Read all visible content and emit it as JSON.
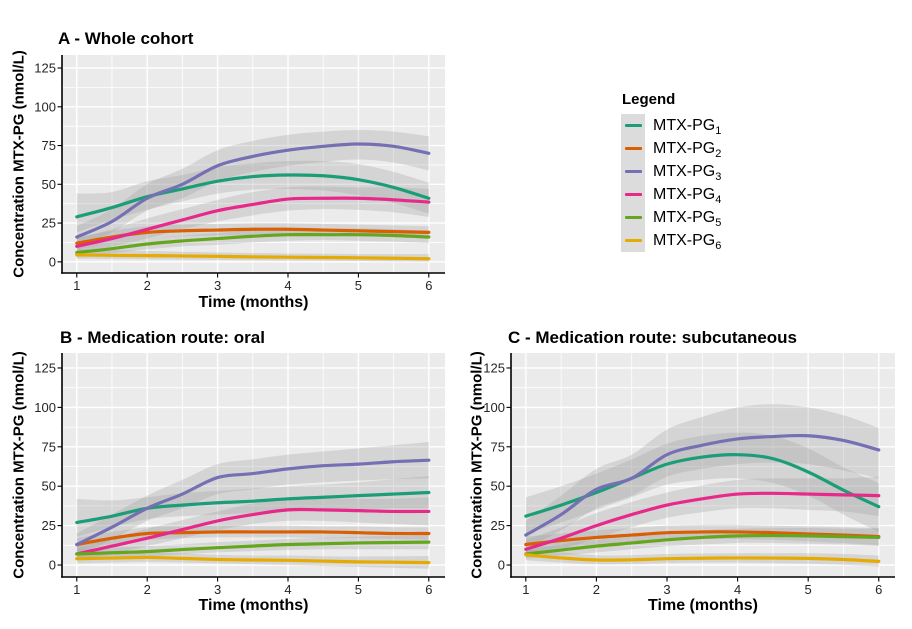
{
  "page": {
    "background": "#FFFFFF"
  },
  "legend": {
    "title": "Legend",
    "key_background": "#DCDCDC",
    "items": [
      {
        "label_base": "MTX-PG",
        "label_sub": "1",
        "color": "#1B9E77"
      },
      {
        "label_base": "MTX-PG",
        "label_sub": "2",
        "color": "#D95F02"
      },
      {
        "label_base": "MTX-PG",
        "label_sub": "3",
        "color": "#7570B3"
      },
      {
        "label_base": "MTX-PG",
        "label_sub": "4",
        "color": "#E7298A"
      },
      {
        "label_base": "MTX-PG",
        "label_sub": "5",
        "color": "#66A61E"
      },
      {
        "label_base": "MTX-PG",
        "label_sub": "6",
        "color": "#E6AB02"
      }
    ]
  },
  "chart_data": [
    {
      "type": "line",
      "title": "A - Whole cohort",
      "xlabel": "Time (months)",
      "ylabel": "Concentration MTX-PG (nmol/L)",
      "xticks": [
        1,
        2,
        3,
        4,
        5,
        6
      ],
      "yticks": [
        0,
        25,
        50,
        75,
        100,
        125
      ],
      "x_minor": [
        1.5,
        2.5,
        3.5,
        4.5,
        5.5
      ],
      "y_minor": [
        12.5,
        37.5,
        62.5,
        87.5,
        112.5
      ],
      "xlim": [
        0.79,
        6.23
      ],
      "ylim": [
        -7.2,
        133.4
      ],
      "grid": true,
      "plot_background": "#EBEBEB",
      "grid_color": "#FFFFFF",
      "band_color": "#999999",
      "band_opacity": 0.28,
      "x": [
        1,
        1.5,
        2,
        2.5,
        3,
        3.5,
        4,
        4.5,
        5,
        5.5,
        6
      ],
      "series": [
        {
          "name": "MTX-PG1",
          "color": "#1B9E77",
          "values": [
            29,
            35,
            42,
            47,
            52,
            55,
            56,
            55.5,
            53,
            48,
            41
          ],
          "ci_low": [
            19,
            27,
            33.5,
            39,
            44,
            46.5,
            47,
            46,
            43,
            38,
            31
          ],
          "ci_high": [
            44,
            45,
            52,
            56,
            61,
            63.5,
            65,
            65,
            63,
            58,
            51
          ]
        },
        {
          "name": "MTX-PG2",
          "color": "#D95F02",
          "values": [
            12,
            16,
            19,
            20,
            20.5,
            21,
            21,
            20.5,
            20,
            19.5,
            19
          ],
          "ci_low": [
            8,
            12,
            15,
            16.5,
            17,
            17.5,
            17.5,
            17,
            16.5,
            16,
            15
          ],
          "ci_high": [
            16,
            20,
            23,
            24,
            24.5,
            25,
            25,
            24.5,
            24,
            23.5,
            23
          ]
        },
        {
          "name": "MTX-PG3",
          "color": "#7570B3",
          "values": [
            16,
            26,
            41,
            50,
            62,
            68,
            72,
            74.5,
            76,
            74.5,
            70
          ],
          "ci_low": [
            10,
            19,
            33,
            41,
            52,
            58,
            62,
            64.5,
            66,
            64,
            59
          ],
          "ci_high": [
            23,
            34,
            50,
            60,
            72,
            78,
            82,
            84,
            85,
            84,
            81
          ]
        },
        {
          "name": "MTX-PG4",
          "color": "#E7298A",
          "values": [
            10,
            15,
            21,
            27,
            33,
            37,
            40.5,
            41,
            41,
            40,
            38.5
          ],
          "ci_low": [
            5,
            10,
            15,
            21,
            26,
            30,
            33,
            34,
            33.5,
            32,
            29
          ],
          "ci_high": [
            15,
            21,
            28,
            34,
            40,
            45,
            48,
            48.5,
            48,
            48,
            47
          ]
        },
        {
          "name": "MTX-PG5",
          "color": "#66A61E",
          "values": [
            6,
            8.5,
            11.5,
            13.5,
            15,
            16.5,
            17.5,
            17.5,
            17.5,
            17,
            16
          ],
          "ci_low": [
            3,
            5.5,
            8,
            10,
            11,
            12.5,
            13.5,
            14,
            13.5,
            13,
            12
          ],
          "ci_high": [
            9,
            12,
            15,
            17,
            18.5,
            20.5,
            21.5,
            21.5,
            21.5,
            21,
            20
          ]
        },
        {
          "name": "MTX-PG6",
          "color": "#E6AB02",
          "values": [
            4.5,
            4.2,
            4,
            3.8,
            3.5,
            3.2,
            3,
            2.8,
            2.6,
            2.3,
            2
          ],
          "ci_low": [
            2,
            1.8,
            1.6,
            1.4,
            1.2,
            1,
            0.9,
            0.7,
            0.5,
            0.2,
            0
          ],
          "ci_high": [
            8,
            7.5,
            7,
            6.5,
            6,
            5.7,
            5.4,
            5.2,
            5,
            5,
            5
          ]
        }
      ]
    },
    {
      "type": "line",
      "title": "B - Medication route: oral",
      "xlabel": "Time (months)",
      "ylabel": "Concentration MTX-PG (nmol/L)",
      "xticks": [
        1,
        2,
        3,
        4,
        5,
        6
      ],
      "yticks": [
        0,
        25,
        50,
        75,
        100,
        125
      ],
      "x_minor": [
        1.5,
        2.5,
        3.5,
        4.5,
        5.5
      ],
      "y_minor": [
        12.5,
        37.5,
        62.5,
        87.5,
        112.5
      ],
      "xlim": [
        0.79,
        6.23
      ],
      "ylim": [
        -7.6,
        134.5
      ],
      "grid": true,
      "plot_background": "#EBEBEB",
      "grid_color": "#FFFFFF",
      "band_color": "#999999",
      "band_opacity": 0.28,
      "x": [
        1,
        1.5,
        2,
        2.5,
        3,
        3.5,
        4,
        4.5,
        5,
        5.5,
        6
      ],
      "series": [
        {
          "name": "MTX-PG1",
          "color": "#1B9E77",
          "values": [
            27,
            31,
            36,
            38,
            39.5,
            40.5,
            42,
            43,
            44,
            45,
            46
          ],
          "ci_low": [
            18,
            24,
            29,
            31,
            32,
            33,
            34,
            35,
            35.5,
            36,
            36
          ],
          "ci_high": [
            42,
            41,
            43,
            45.5,
            47,
            48.5,
            50,
            51,
            52.5,
            54.5,
            56.5
          ]
        },
        {
          "name": "MTX-PG2",
          "color": "#D95F02",
          "values": [
            13,
            17,
            20,
            20.5,
            21,
            21,
            21,
            21,
            20.5,
            20,
            20
          ],
          "ci_low": [
            9,
            13,
            16,
            17,
            17.5,
            17.5,
            17.5,
            17,
            17,
            16.5,
            16
          ],
          "ci_high": [
            17,
            21,
            24,
            24.5,
            25,
            25,
            25,
            24.5,
            24.5,
            24,
            24
          ]
        },
        {
          "name": "MTX-PG3",
          "color": "#7570B3",
          "values": [
            13,
            24,
            36,
            45,
            55.5,
            58,
            61,
            63,
            64,
            65.5,
            66.5
          ],
          "ci_low": [
            6,
            16,
            28,
            36,
            45,
            48,
            51,
            52.5,
            53.5,
            54.5,
            55
          ],
          "ci_high": [
            20,
            32,
            44,
            54,
            64,
            67,
            70,
            72,
            74,
            76,
            78
          ]
        },
        {
          "name": "MTX-PG4",
          "color": "#E7298A",
          "values": [
            7,
            12,
            17,
            22.5,
            28,
            32,
            35,
            35,
            34.5,
            34,
            34
          ],
          "ci_low": [
            3,
            7,
            12,
            17,
            22,
            26,
            28,
            28,
            27,
            26,
            25
          ],
          "ci_high": [
            12,
            17,
            23,
            28.5,
            34,
            39,
            42,
            42.5,
            42,
            42,
            43
          ]
        },
        {
          "name": "MTX-PG5",
          "color": "#66A61E",
          "values": [
            7,
            7.8,
            8.5,
            9.8,
            11,
            12,
            13,
            13.5,
            14,
            14.3,
            14.5
          ],
          "ci_low": [
            4,
            4.8,
            5.5,
            6.8,
            8,
            8.8,
            9.5,
            10,
            10,
            10,
            10
          ],
          "ci_high": [
            10,
            11,
            12,
            13.2,
            14.5,
            15.5,
            16.5,
            17.2,
            18,
            18.5,
            19
          ]
        },
        {
          "name": "MTX-PG6",
          "color": "#E6AB02",
          "values": [
            4,
            4.4,
            4.8,
            4.2,
            3.5,
            3.2,
            3,
            2.5,
            2,
            1.8,
            1.5
          ],
          "ci_low": [
            1,
            1.5,
            2,
            1.5,
            1,
            0.5,
            0,
            -0.6,
            -1.2,
            -1.8,
            -2.4
          ],
          "ci_high": [
            7,
            7.4,
            7.8,
            7.4,
            6.5,
            6,
            6,
            5.6,
            5.4,
            5.5,
            5.7
          ]
        }
      ]
    },
    {
      "type": "line",
      "title": "C - Medication route: subcutaneous",
      "xlabel": "Time (months)",
      "ylabel": "Concentration MTX-PG (nmol/L)",
      "xticks": [
        1,
        2,
        3,
        4,
        5,
        6
      ],
      "yticks": [
        0,
        25,
        50,
        75,
        100,
        125
      ],
      "x_minor": [
        1.5,
        2.5,
        3.5,
        4.5,
        5.5
      ],
      "y_minor": [
        12.5,
        37.5,
        62.5,
        87.5,
        112.5
      ],
      "xlim": [
        0.79,
        6.23
      ],
      "ylim": [
        -7.6,
        134.5
      ],
      "grid": true,
      "plot_background": "#EBEBEB",
      "grid_color": "#FFFFFF",
      "band_color": "#999999",
      "band_opacity": 0.28,
      "x": [
        1,
        1.5,
        2,
        2.5,
        3,
        3.5,
        4,
        4.5,
        5,
        5.5,
        6
      ],
      "series": [
        {
          "name": "MTX-PG1",
          "color": "#1B9E77",
          "values": [
            31,
            38,
            46,
            55,
            64,
            68.5,
            70,
            67.5,
            59,
            47.5,
            37
          ],
          "ci_low": [
            20,
            27,
            35,
            43,
            51,
            54,
            55,
            52,
            44,
            32,
            21
          ],
          "ci_high": [
            43,
            50,
            58,
            67,
            77,
            82,
            84,
            82,
            74,
            62,
            52
          ]
        },
        {
          "name": "MTX-PG2",
          "color": "#D95F02",
          "values": [
            13,
            15.5,
            17.5,
            19,
            20.5,
            21,
            21,
            20.5,
            19.7,
            19,
            18
          ],
          "ci_low": [
            8,
            11,
            13,
            14.5,
            16,
            16.5,
            16.5,
            16,
            15,
            14,
            12.5
          ],
          "ci_high": [
            18,
            20,
            22,
            23.5,
            25,
            25.5,
            25.5,
            25,
            24.5,
            24,
            23.5
          ]
        },
        {
          "name": "MTX-PG3",
          "color": "#7570B3",
          "values": [
            19,
            32,
            48,
            55,
            70,
            76,
            80,
            81.5,
            82,
            79,
            73
          ],
          "ci_low": [
            11,
            22,
            36,
            44,
            56,
            61,
            64,
            65,
            64,
            60,
            55
          ],
          "ci_high": [
            28,
            44,
            61,
            70,
            86,
            94,
            100,
            102,
            100,
            95,
            87
          ]
        },
        {
          "name": "MTX-PG4",
          "color": "#E7298A",
          "values": [
            10,
            17,
            25,
            32,
            38,
            42,
            45,
            45.5,
            45,
            44.5,
            44
          ],
          "ci_low": [
            5,
            10,
            17,
            24,
            30,
            33.5,
            36,
            36,
            35,
            34,
            31
          ],
          "ci_high": [
            16,
            24,
            33,
            40,
            46,
            50.5,
            54,
            55,
            55,
            55,
            56
          ]
        },
        {
          "name": "MTX-PG5",
          "color": "#66A61E",
          "values": [
            7,
            9.5,
            12,
            14,
            16,
            17.5,
            18.5,
            18.7,
            18.5,
            18,
            17.5
          ],
          "ci_low": [
            4,
            6,
            8,
            10,
            12,
            13,
            14,
            14,
            13.5,
            13,
            12
          ],
          "ci_high": [
            10,
            13,
            16,
            18,
            20,
            22,
            23,
            23.4,
            23.5,
            23,
            23
          ]
        },
        {
          "name": "MTX-PG6",
          "color": "#E6AB02",
          "values": [
            6.5,
            4.5,
            3.2,
            3.3,
            4,
            4.3,
            4.5,
            4.4,
            4.2,
            3.5,
            2.3
          ],
          "ci_low": [
            3,
            1.5,
            0.5,
            0.6,
            1.2,
            1.5,
            1.5,
            1.2,
            0.8,
            0.2,
            -1
          ],
          "ci_high": [
            10,
            8,
            6.2,
            6.2,
            7,
            7.3,
            7.5,
            7.5,
            7.5,
            7,
            6
          ]
        }
      ]
    }
  ]
}
